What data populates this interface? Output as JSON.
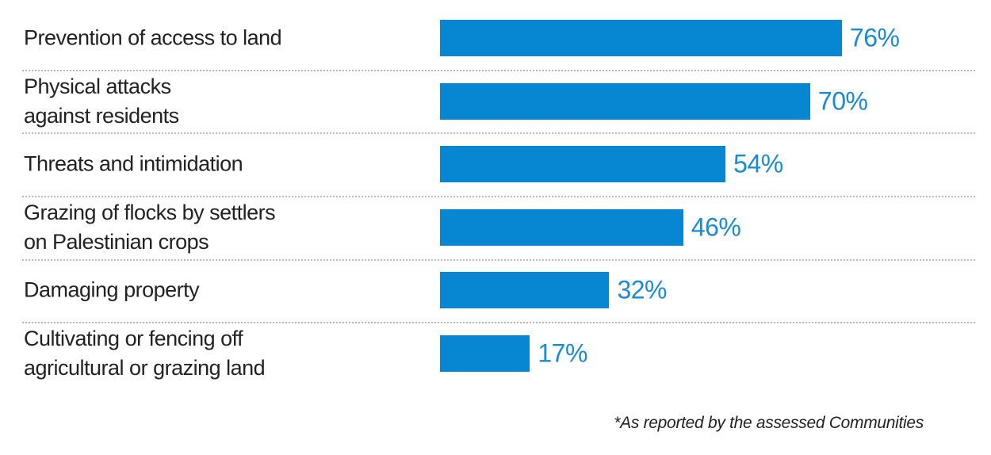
{
  "chart_data": {
    "type": "bar",
    "orientation": "horizontal",
    "categories": [
      "Prevention of access to land",
      "Physical attacks\nagainst residents",
      "Threats and intimidation",
      "Grazing of flocks by settlers\non Palestinian crops",
      "Damaging property",
      "Cultivating or fencing off\nagricultural or grazing land"
    ],
    "values": [
      76,
      70,
      54,
      46,
      32,
      17
    ],
    "value_labels": [
      "76%",
      "70%",
      "54%",
      "46%",
      "32%",
      "17%"
    ],
    "color": "#0787d1",
    "footnote": "*As reported by the assessed Communities"
  }
}
